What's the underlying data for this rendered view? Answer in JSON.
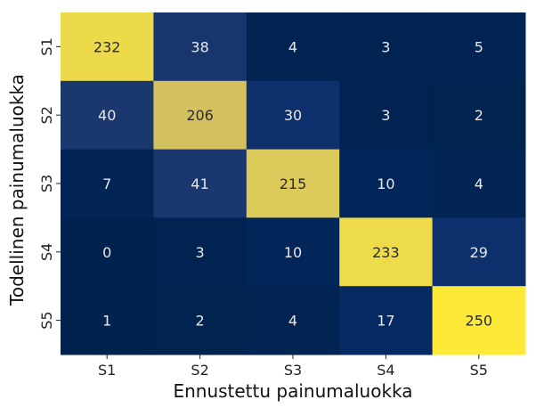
{
  "chart_data": {
    "type": "heatmap",
    "title": "",
    "xlabel": "Ennustettu painumaluokka",
    "ylabel": "Todellinen painumaluokka",
    "x_categories": [
      "S1",
      "S2",
      "S3",
      "S4",
      "S5"
    ],
    "y_categories": [
      "S1",
      "S2",
      "S3",
      "S4",
      "S5"
    ],
    "values": [
      [
        232,
        38,
        4,
        3,
        5
      ],
      [
        40,
        206,
        30,
        3,
        2
      ],
      [
        7,
        41,
        215,
        10,
        4
      ],
      [
        0,
        3,
        10,
        233,
        29
      ],
      [
        1,
        2,
        4,
        17,
        250
      ]
    ],
    "vmin": 0,
    "vmax": 250,
    "colormap": "cividis",
    "colorbar": false
  }
}
